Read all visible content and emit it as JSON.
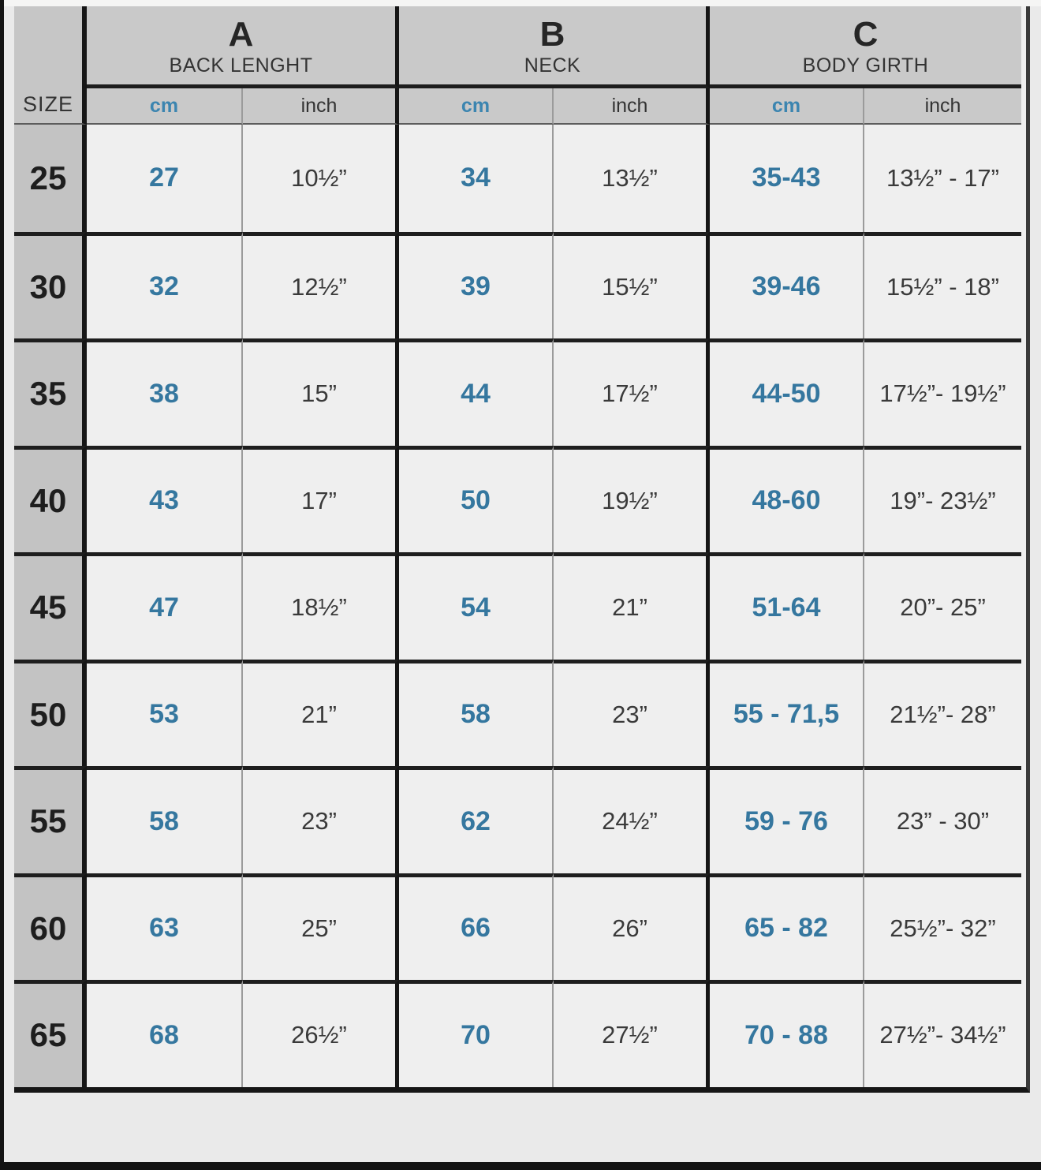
{
  "header": {
    "size_label": "SIZE",
    "groups": [
      {
        "letter": "A",
        "name": "BACK LENGHT"
      },
      {
        "letter": "B",
        "name": "NECK"
      },
      {
        "letter": "C",
        "name": "BODY GIRTH"
      }
    ],
    "unit_cm": "cm",
    "unit_inch": "inch"
  },
  "rows": [
    {
      "size": "25",
      "a_cm": "27",
      "a_inch": "10½”",
      "b_cm": "34",
      "b_inch": "13½”",
      "c_cm": "35-43",
      "c_inch": "13½” - 17”"
    },
    {
      "size": "30",
      "a_cm": "32",
      "a_inch": "12½”",
      "b_cm": "39",
      "b_inch": "15½”",
      "c_cm": "39-46",
      "c_inch": "15½” - 18”"
    },
    {
      "size": "35",
      "a_cm": "38",
      "a_inch": "15”",
      "b_cm": "44",
      "b_inch": "17½”",
      "c_cm": "44-50",
      "c_inch": "17½”- 19½”"
    },
    {
      "size": "40",
      "a_cm": "43",
      "a_inch": "17”",
      "b_cm": "50",
      "b_inch": "19½”",
      "c_cm": "48-60",
      "c_inch": "19”- 23½”"
    },
    {
      "size": "45",
      "a_cm": "47",
      "a_inch": "18½”",
      "b_cm": "54",
      "b_inch": "21”",
      "c_cm": "51-64",
      "c_inch": "20”- 25”"
    },
    {
      "size": "50",
      "a_cm": "53",
      "a_inch": "21”",
      "b_cm": "58",
      "b_inch": "23”",
      "c_cm": "55 - 71,5",
      "c_inch": "21½”- 28”"
    },
    {
      "size": "55",
      "a_cm": "58",
      "a_inch": "23”",
      "b_cm": "62",
      "b_inch": "24½”",
      "c_cm": "59 - 76",
      "c_inch": "23” - 30”"
    },
    {
      "size": "60",
      "a_cm": "63",
      "a_inch": "25”",
      "b_cm": "66",
      "b_inch": "26”",
      "c_cm": "65 - 82",
      "c_inch": "25½”- 32”"
    },
    {
      "size": "65",
      "a_cm": "68",
      "a_inch": "26½”",
      "b_cm": "70",
      "b_inch": "27½”",
      "c_cm": "70 - 88",
      "c_inch": "27½”- 34½”"
    }
  ],
  "colors": {
    "accent_blue_values": "#35779f",
    "accent_blue_cm_label": "#3c85b0",
    "header_gray": "#c9c9c9",
    "size_column_gray": "#c3c3c3",
    "cell_background": "#efefef",
    "grid_line_dark": "#161616"
  }
}
